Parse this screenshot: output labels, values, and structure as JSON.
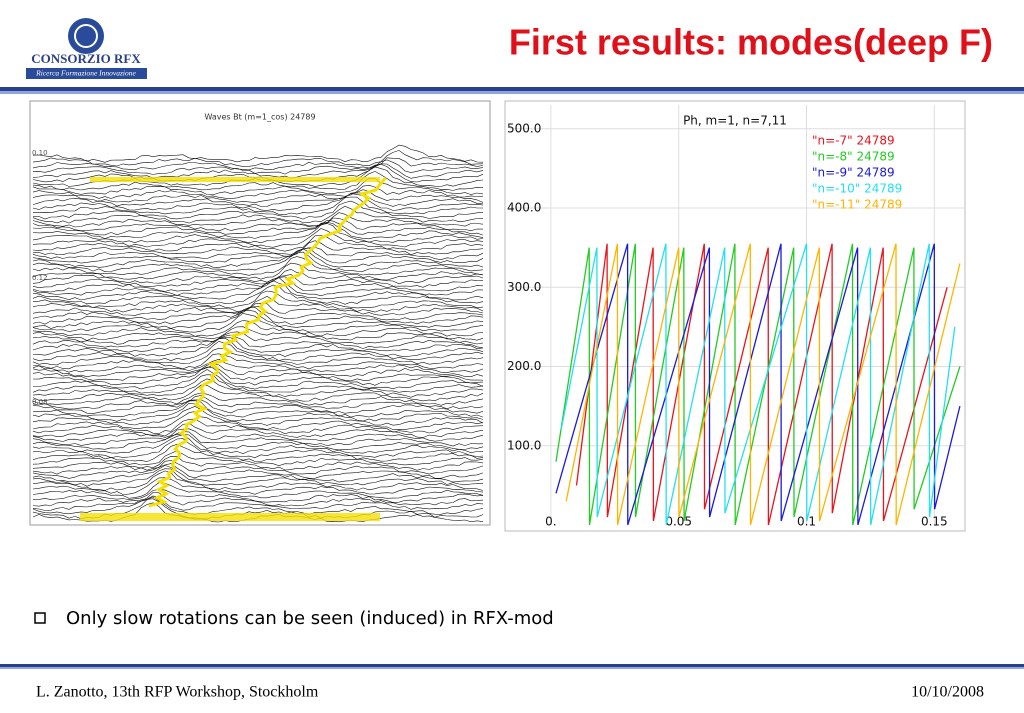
{
  "header": {
    "title": "First results: modes(deep F)",
    "logo_name": "CONSORZIO RFX",
    "logo_tagline": "Ricerca Formazione Innovazione"
  },
  "left_plot": {
    "title": "Waves Bt (m=1_cos) 24789",
    "ylabels": [
      "0.10",
      "0.12",
      "0.08"
    ]
  },
  "chart_data": {
    "type": "line",
    "title": "Ph, m=1, n=7,11",
    "xlim": [
      -0.016,
      0.162
    ],
    "ylim": [
      0,
      530
    ],
    "xticks": [
      {
        "value": 0,
        "label": "0."
      },
      0.05,
      0.1,
      0.15
    ],
    "yticks": [
      {
        "value": 100,
        "label": "100.0"
      },
      {
        "value": 200,
        "label": "200.0"
      },
      {
        "value": 300,
        "label": "300.0"
      },
      {
        "value": 400,
        "label": "400.0"
      },
      {
        "value": 500,
        "label": "500.0"
      }
    ],
    "grid": true,
    "series": [
      {
        "name": "\"n=-7\" 24789",
        "color": "#e8141c",
        "x": [
          0.01,
          0.022,
          0.0221,
          0.04,
          0.0401,
          0.06,
          0.0601,
          0.085,
          0.0851,
          0.11,
          0.1101,
          0.13,
          0.1301,
          0.155
        ],
        "values": [
          50,
          355,
          10,
          350,
          5,
          355,
          20,
          350,
          0,
          355,
          15,
          350,
          5,
          300
        ]
      },
      {
        "name": "\"n=-8\" 24789",
        "color": "#22cc22",
        "x": [
          0.002,
          0.015,
          0.0151,
          0.033,
          0.0331,
          0.052,
          0.0521,
          0.072,
          0.0721,
          0.095,
          0.0951,
          0.118,
          0.1181,
          0.142,
          0.1421,
          0.16
        ],
        "values": [
          80,
          350,
          0,
          355,
          10,
          350,
          5,
          355,
          0,
          350,
          10,
          355,
          0,
          350,
          20,
          200
        ]
      },
      {
        "name": "\"n=-9\" 24789",
        "color": "#1a1adc",
        "x": [
          0.002,
          0.03,
          0.0301,
          0.062,
          0.0621,
          0.09,
          0.0901,
          0.12,
          0.1201,
          0.15,
          0.1501,
          0.16
        ],
        "values": [
          40,
          355,
          0,
          350,
          10,
          355,
          5,
          350,
          0,
          355,
          20,
          150
        ]
      },
      {
        "name": "\"n=-10\" 24789",
        "color": "#22e0f0",
        "x": [
          0.004,
          0.018,
          0.0181,
          0.045,
          0.0451,
          0.068,
          0.0681,
          0.1,
          0.1001,
          0.125,
          0.1251,
          0.148,
          0.1481,
          0.158
        ],
        "values": [
          120,
          350,
          10,
          355,
          0,
          350,
          15,
          355,
          5,
          350,
          0,
          355,
          10,
          250
        ]
      },
      {
        "name": "\"n=-11\" 24789",
        "color": "#ffb400",
        "x": [
          0.006,
          0.026,
          0.0261,
          0.05,
          0.0501,
          0.078,
          0.0781,
          0.105,
          0.1051,
          0.135,
          0.1351,
          0.16
        ],
        "values": [
          30,
          355,
          0,
          350,
          10,
          355,
          0,
          350,
          5,
          355,
          0,
          330
        ]
      }
    ]
  },
  "bullets": [
    "Only slow rotations can be seen (induced) in RFX-mod"
  ],
  "footer": {
    "left": "L. Zanotto, 13th RFP Workshop, Stockholm",
    "right": "10/10/2008"
  }
}
